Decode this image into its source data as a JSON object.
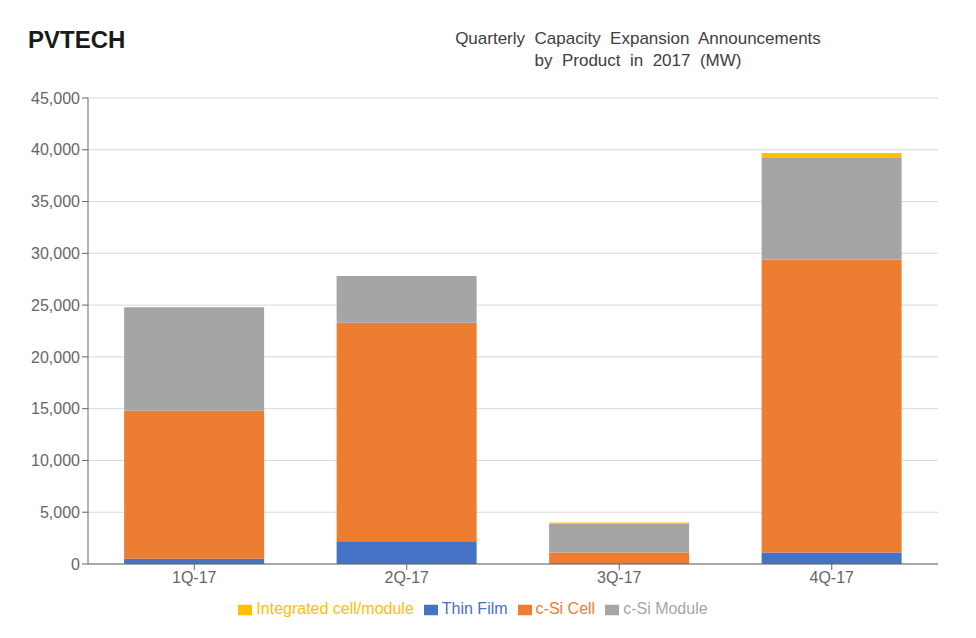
{
  "chart_data": {
    "type": "bar",
    "stacked": true,
    "title": "Quarterly  Capacity  Expansion  Announcements",
    "subtitle": "by  Product  in  2017  (MW)",
    "annotations": [
      "PVTECH"
    ],
    "categories": [
      "1Q-17",
      "2Q-17",
      "3Q-17",
      "4Q-17"
    ],
    "series": [
      {
        "name": "Thin Film",
        "color": "#4472C4",
        "values": [
          500,
          2200,
          0,
          1100
        ]
      },
      {
        "name": "c-Si Cell",
        "color": "#ED7D31",
        "values": [
          14300,
          21100,
          1100,
          28300
        ]
      },
      {
        "name": "c-Si Module",
        "color": "#A5A5A5",
        "values": [
          10000,
          4500,
          2800,
          9800
        ]
      },
      {
        "name": "Integrated cell/module",
        "color": "#FFC000",
        "values": [
          0,
          0,
          100,
          500
        ]
      }
    ],
    "ylim": [
      0,
      45000
    ],
    "yticks": [
      0,
      {
        "value": 5000,
        "label": "5,000"
      },
      {
        "value": 10000,
        "label": "10,000"
      },
      {
        "value": 15000,
        "label": "15,000"
      },
      {
        "value": 20000,
        "label": "20,000"
      },
      {
        "value": 25000,
        "label": "25,000"
      },
      {
        "value": 30000,
        "label": "30,000"
      },
      {
        "value": 35000,
        "label": "35,000"
      },
      {
        "value": 40000,
        "label": "40,000"
      },
      {
        "value": 45000,
        "label": "45,000"
      }
    ],
    "grid": true,
    "legend": "bottom"
  }
}
